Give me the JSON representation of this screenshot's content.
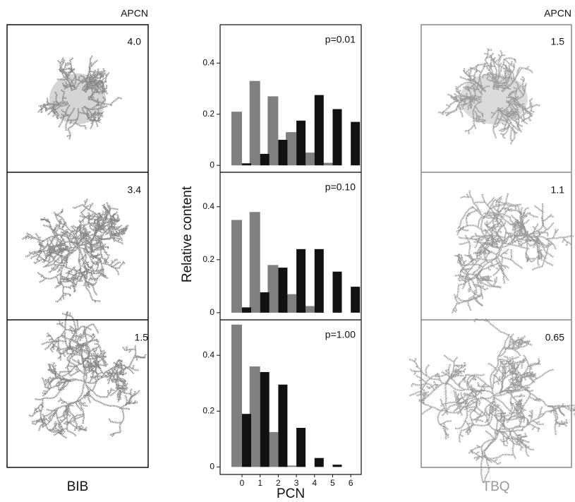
{
  "chart_data": [
    {
      "type": "bar",
      "annotation": "p=0.01",
      "ylim": [
        -0.027,
        0.55
      ],
      "yticks": [
        0,
        0.2,
        0.4
      ],
      "series": [
        {
          "color": "#808080",
          "values": [
            0.21,
            0.33,
            0.27,
            0.13,
            0.05,
            0.01,
            0
          ]
        },
        {
          "color": "#111111",
          "values": [
            0.008,
            0.045,
            0.1,
            0.175,
            0.275,
            0.22,
            0.17
          ]
        }
      ]
    },
    {
      "type": "bar",
      "annotation": "p=0.10",
      "ylim": [
        -0.027,
        0.53
      ],
      "yticks": [
        0,
        0.2,
        0.4
      ],
      "series": [
        {
          "color": "#808080",
          "values": [
            0.35,
            0.38,
            0.18,
            0.07,
            0.025,
            0,
            0
          ]
        },
        {
          "color": "#111111",
          "values": [
            0.02,
            0.077,
            0.17,
            0.24,
            0.24,
            0.155,
            0.098
          ]
        }
      ]
    },
    {
      "type": "bar",
      "annotation": "p=1.00",
      "ylim": [
        -0.027,
        0.527
      ],
      "yticks": [
        0,
        0.2,
        0.4
      ],
      "categories": [
        "0",
        "1",
        "2",
        "3",
        "4",
        "5",
        "6"
      ],
      "series": [
        {
          "color": "#808080",
          "values": [
            0.51,
            0.36,
            0.125,
            0.005,
            0,
            0,
            0
          ]
        },
        {
          "color": "#111111",
          "values": [
            0.19,
            0.34,
            0.295,
            0.14,
            0.032,
            0.008,
            0
          ]
        }
      ]
    }
  ],
  "shared_axes": {
    "ylabel": "Relative content",
    "xlabel": "PCN"
  },
  "left_panels": {
    "header": "APCN",
    "label": "BIB",
    "values": [
      "4.0",
      "3.4",
      "1.5"
    ]
  },
  "right_panels": {
    "header": "APCN",
    "label": "TBQ",
    "values": [
      "1.5",
      "1.1",
      "0.65"
    ]
  }
}
